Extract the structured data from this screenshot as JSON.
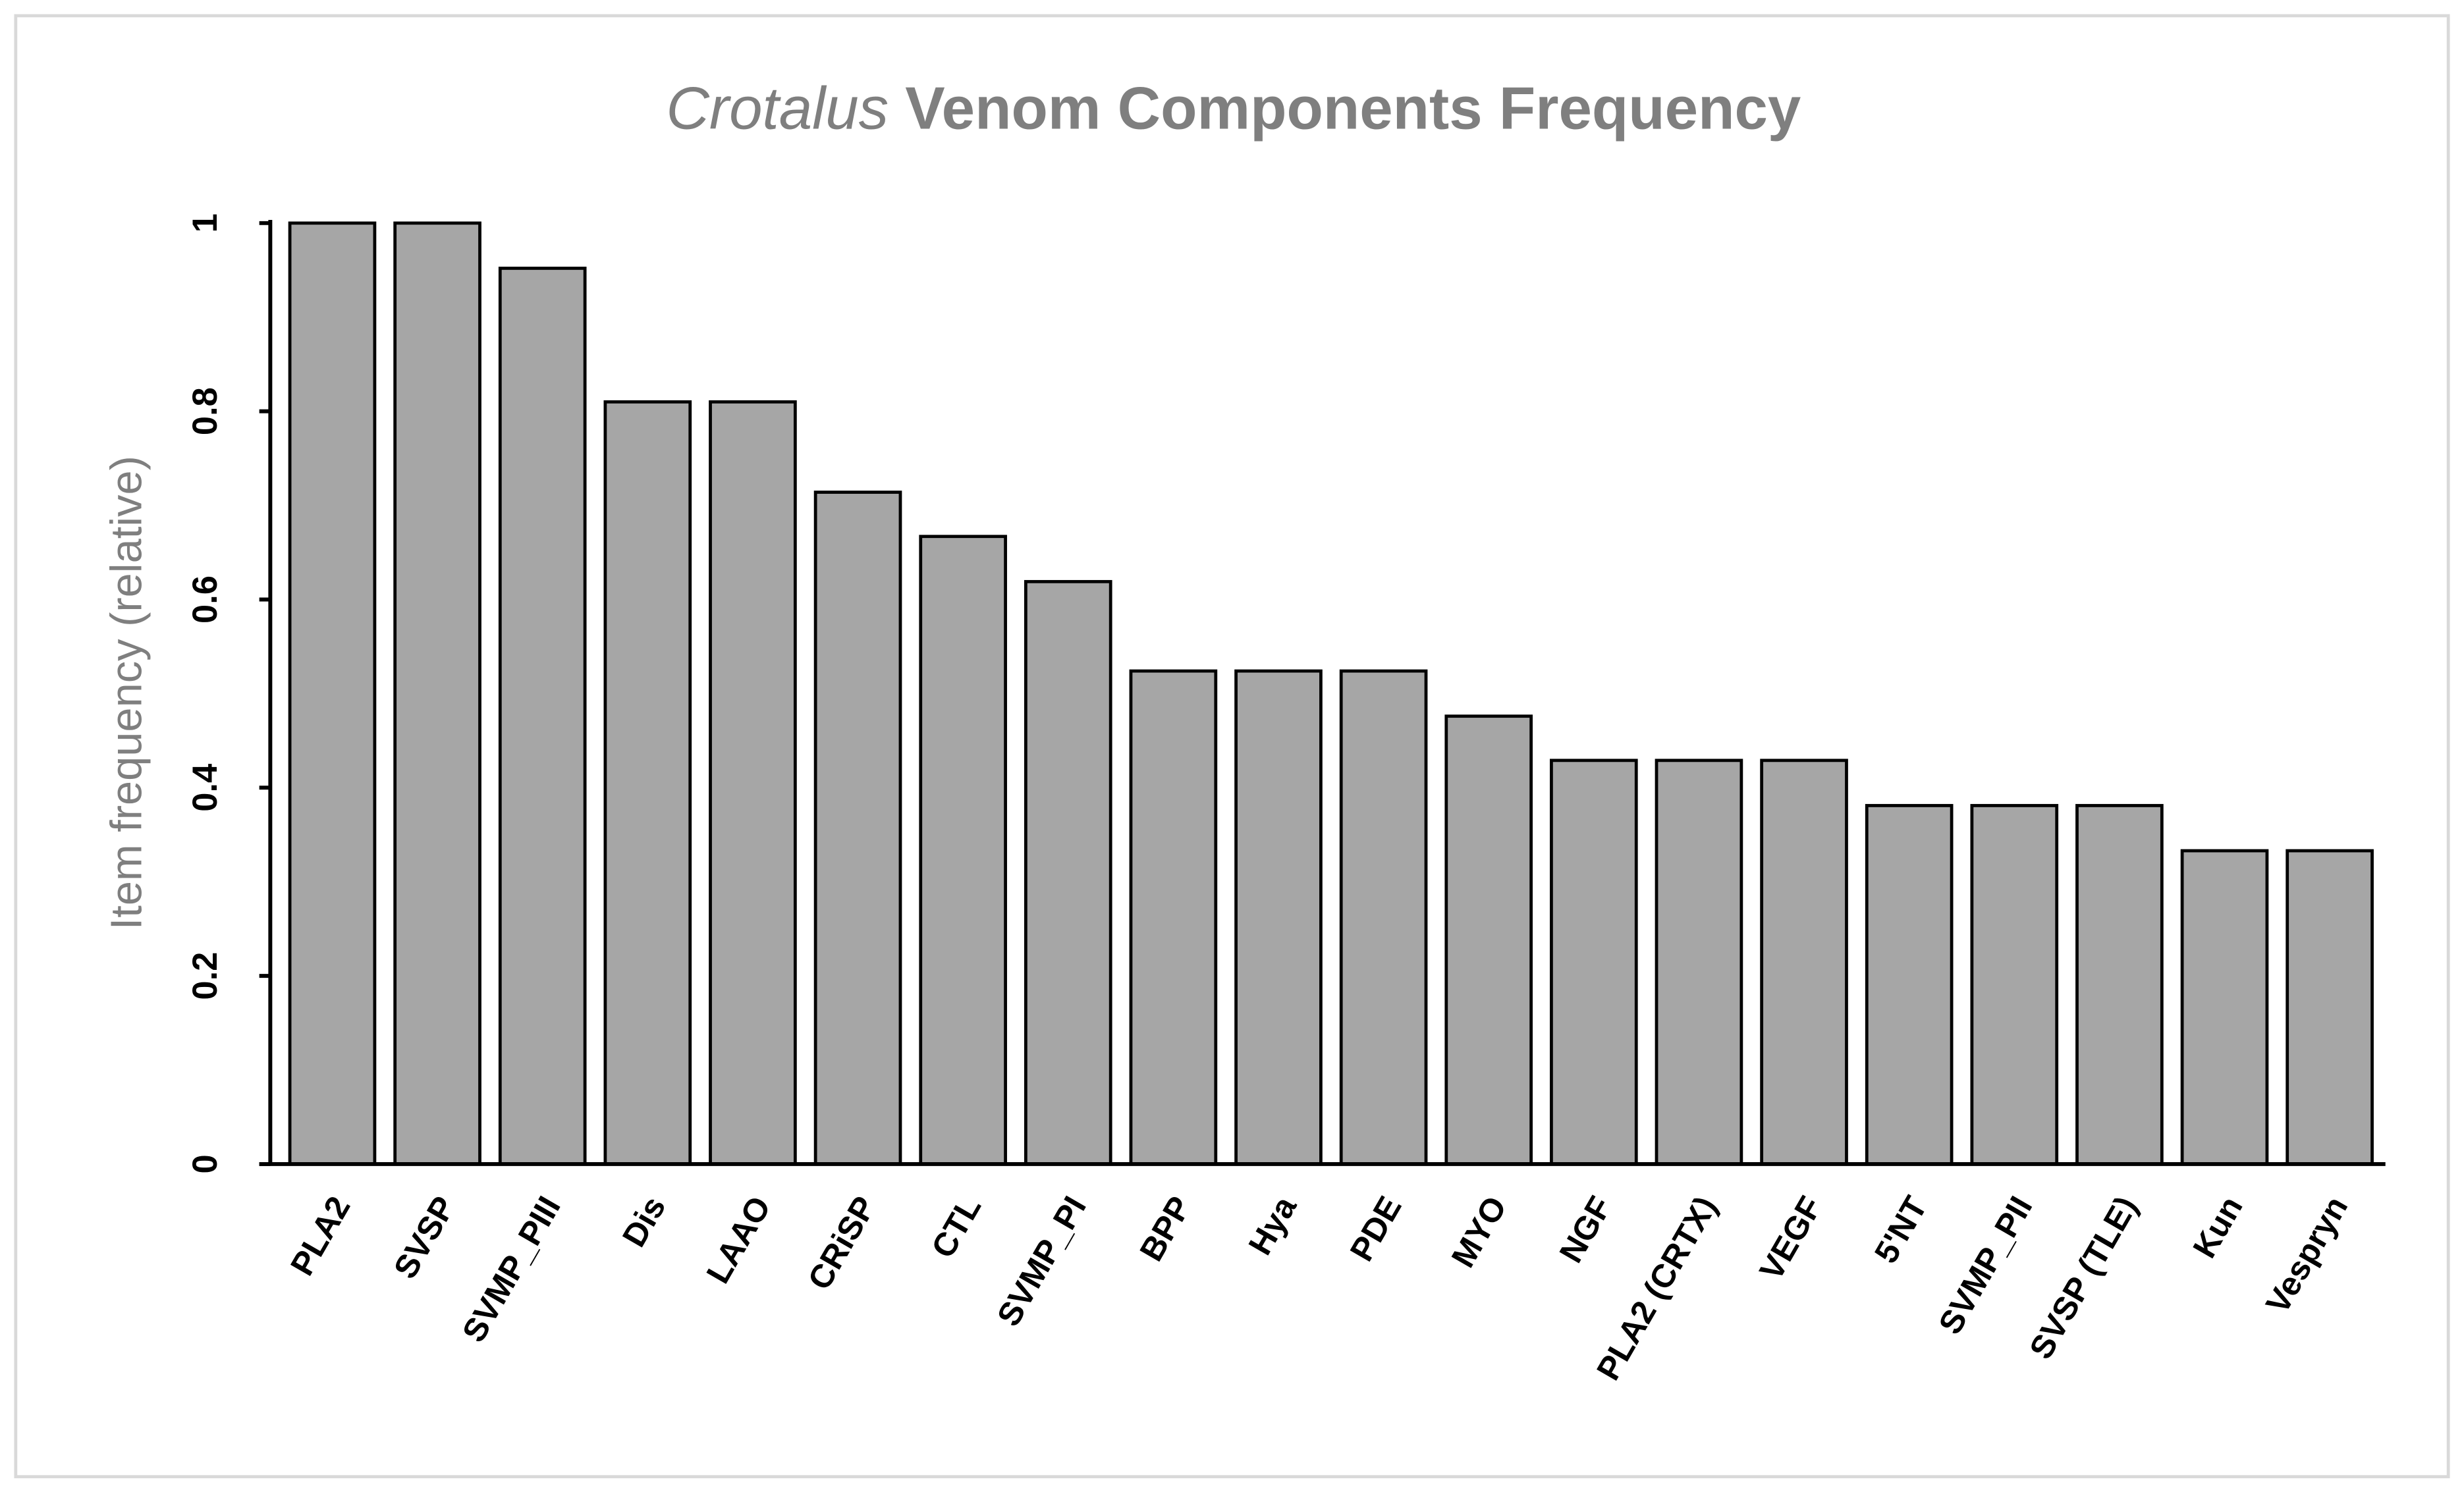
{
  "chart_data": {
    "type": "bar",
    "title_italic": "Crotalus",
    "title": "Venom Components Frequency",
    "y_label": "Item frequency (relative)",
    "categories": [
      "PLA2",
      "SVSP",
      "SVMP_PIII",
      "Dis",
      "LAAO",
      "CRiSP",
      "CTL",
      "SVMP_PI",
      "BPP",
      "Hya",
      "PDE",
      "MYO",
      "NGF",
      "PLA2 (CRTX)",
      "VEGF",
      "5'NT",
      "SVMP_PII",
      "SVSP (TLE)",
      "Kun",
      "Vespryn"
    ],
    "values": [
      1,
      1,
      0.952,
      0.81,
      0.81,
      0.714,
      0.667,
      0.619,
      0.524,
      0.524,
      0.524,
      0.476,
      0.429,
      0.429,
      0.429,
      0.381,
      0.381,
      0.381,
      0.333,
      0.333
    ],
    "color": "#a6a6a6",
    "ylim": [
      0,
      1
    ],
    "yticks": [
      0,
      0.2,
      0.4,
      0.6,
      0.8,
      1
    ],
    "grid": false
  }
}
